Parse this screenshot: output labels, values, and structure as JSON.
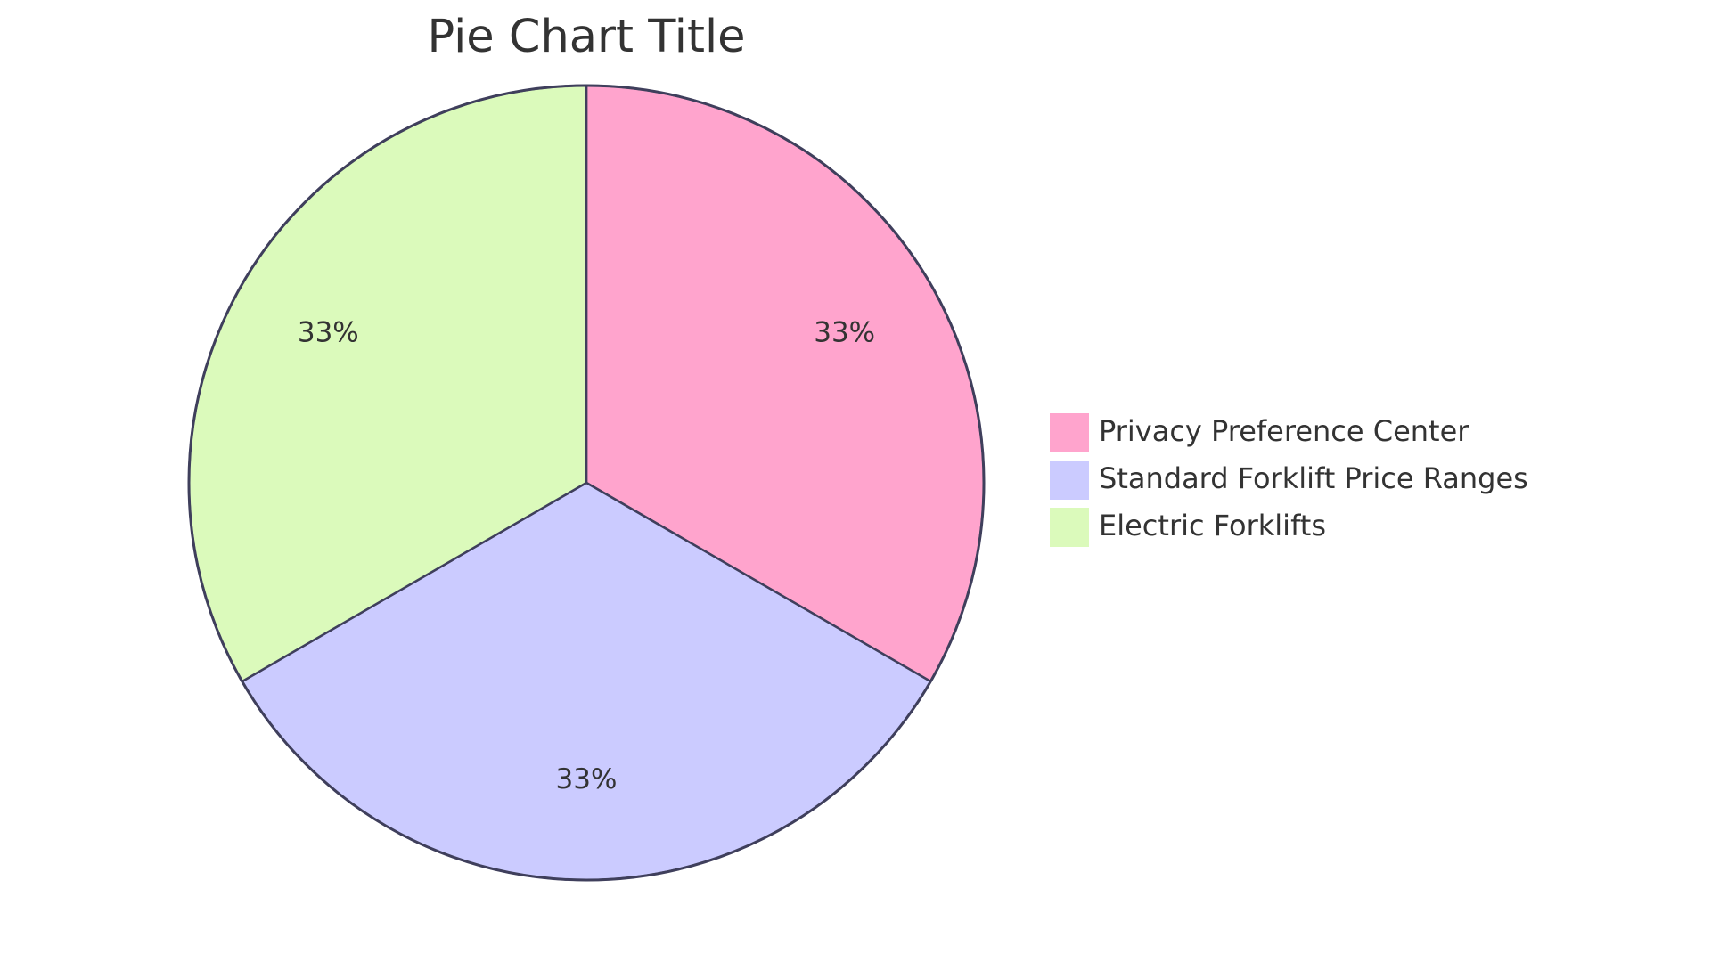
{
  "chart_data": {
    "type": "pie",
    "title": "Pie Chart Title",
    "slices": [
      {
        "label": "Privacy Preference Center",
        "value": 33.33,
        "display": "33%",
        "color": "#ffa4cd"
      },
      {
        "label": "Standard Forklift Price Ranges",
        "value": 33.33,
        "display": "33%",
        "color": "#cbcbff"
      },
      {
        "label": "Electric Forklifts",
        "value": 33.33,
        "display": "33%",
        "color": "#dbfabb"
      }
    ],
    "start_angle_deg": 0,
    "direction": "clockwise",
    "legend_position": "right"
  }
}
